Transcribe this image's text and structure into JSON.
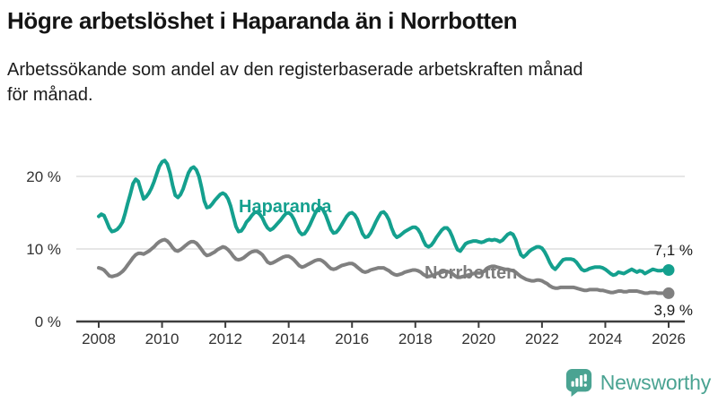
{
  "header": {
    "title": "Högre arbetslöshet i Haparanda än i Norrbotten",
    "subtitle": "Arbetssökande som andel av den registerbaserade arbetskraften månad för månad."
  },
  "chart_data": {
    "type": "line",
    "title": "Högre arbetslöshet i Haparanda än i Norrbotten",
    "xlabel": "",
    "ylabel": "Arbetssökande som andel av den registerbaserade arbetskraften",
    "x_unit": "year",
    "frequency": "monthly",
    "x_start": "2008-01",
    "x_end": "2026-01",
    "x_start_numeric": 2008,
    "xticks": [
      2008,
      2010,
      2012,
      2014,
      2016,
      2018,
      2020,
      2022,
      2024,
      2026
    ],
    "yticks": [
      {
        "value": 0,
        "label": "0 %"
      },
      {
        "value": 10,
        "label": "10 %"
      },
      {
        "value": 20,
        "label": "20 %"
      }
    ],
    "ylim": [
      0,
      23
    ],
    "grid": "horizontal",
    "legend_position": "inline-labels",
    "series": [
      {
        "name": "Haparanda",
        "color": "#14a08e",
        "end_label": "7,1 %",
        "end_value": 7.1,
        "values": [
          14.5,
          14.8,
          14.6,
          13.8,
          12.9,
          12.4,
          12.5,
          12.7,
          13.1,
          13.7,
          14.9,
          16.3,
          17.6,
          19.0,
          19.6,
          19.3,
          18.1,
          16.9,
          17.2,
          17.7,
          18.4,
          19.3,
          20.4,
          21.4,
          22.0,
          22.2,
          21.7,
          20.5,
          18.8,
          17.4,
          17.1,
          17.5,
          18.3,
          19.4,
          20.5,
          21.1,
          21.3,
          20.9,
          20.0,
          18.4,
          16.6,
          15.7,
          15.8,
          16.2,
          16.7,
          17.1,
          17.5,
          17.7,
          17.5,
          16.9,
          15.9,
          14.5,
          13.1,
          12.4,
          12.5,
          13.0,
          13.7,
          14.1,
          14.6,
          15.0,
          15.1,
          14.8,
          14.3,
          13.5,
          12.9,
          12.6,
          12.8,
          13.2,
          13.6,
          14.0,
          14.5,
          14.9,
          15.0,
          14.7,
          14.1,
          13.2,
          12.4,
          12.0,
          12.1,
          12.6,
          13.3,
          14.1,
          14.9,
          15.5,
          15.7,
          15.4,
          14.7,
          13.7,
          12.7,
          12.2,
          12.3,
          12.7,
          13.3,
          13.9,
          14.5,
          14.9,
          15.0,
          14.7,
          14.1,
          13.1,
          12.1,
          11.6,
          11.7,
          12.2,
          12.9,
          13.7,
          14.4,
          15.0,
          15.1,
          14.7,
          14.0,
          12.9,
          12.0,
          11.6,
          11.8,
          12.1,
          12.4,
          12.6,
          12.8,
          13.0,
          13.0,
          12.7,
          12.1,
          11.2,
          10.5,
          10.3,
          10.5,
          11.0,
          11.6,
          12.1,
          12.6,
          12.9,
          12.9,
          12.5,
          11.7,
          10.7,
          9.9,
          9.7,
          10.2,
          10.7,
          10.9,
          11.0,
          11.1,
          11.1,
          11.0,
          10.9,
          11.0,
          11.2,
          11.3,
          11.2,
          11.3,
          11.2,
          11.0,
          11.2,
          11.6,
          12.0,
          12.2,
          12.0,
          11.3,
          10.2,
          9.2,
          8.9,
          9.2,
          9.6,
          9.9,
          10.1,
          10.3,
          10.3,
          10.1,
          9.6,
          8.9,
          8.1,
          7.5,
          7.2,
          7.6,
          8.1,
          8.5,
          8.6,
          8.6,
          8.6,
          8.5,
          8.2,
          7.7,
          7.2,
          7.0,
          7.1,
          7.3,
          7.4,
          7.5,
          7.5,
          7.5,
          7.4,
          7.2,
          6.9,
          6.6,
          6.4,
          6.5,
          6.8,
          6.7,
          6.6,
          6.8,
          7.0,
          7.2,
          7.0,
          6.8,
          7.0,
          6.9,
          6.6,
          6.8,
          7.0,
          7.2,
          7.1,
          7.0,
          7.0,
          7.1,
          7.1,
          7.1
        ]
      },
      {
        "name": "Norrbotten",
        "color": "#808080",
        "end_label": "3,9 %",
        "end_value": 3.9,
        "values": [
          7.4,
          7.3,
          7.1,
          6.7,
          6.3,
          6.2,
          6.3,
          6.4,
          6.6,
          6.9,
          7.3,
          7.8,
          8.3,
          8.8,
          9.2,
          9.4,
          9.4,
          9.3,
          9.5,
          9.7,
          10.0,
          10.3,
          10.7,
          11.0,
          11.2,
          11.3,
          11.1,
          10.7,
          10.2,
          9.8,
          9.7,
          9.9,
          10.2,
          10.5,
          10.8,
          11.0,
          11.0,
          10.8,
          10.4,
          9.9,
          9.4,
          9.1,
          9.2,
          9.4,
          9.6,
          9.9,
          10.1,
          10.3,
          10.2,
          9.9,
          9.5,
          9.0,
          8.6,
          8.5,
          8.6,
          8.8,
          9.1,
          9.4,
          9.6,
          9.7,
          9.7,
          9.5,
          9.2,
          8.7,
          8.2,
          8.0,
          8.1,
          8.3,
          8.5,
          8.7,
          8.9,
          9.0,
          9.0,
          8.8,
          8.5,
          8.1,
          7.7,
          7.5,
          7.6,
          7.8,
          8.0,
          8.2,
          8.4,
          8.5,
          8.5,
          8.3,
          8.0,
          7.6,
          7.3,
          7.2,
          7.3,
          7.5,
          7.7,
          7.8,
          7.9,
          8.0,
          8.0,
          7.8,
          7.5,
          7.2,
          6.9,
          6.8,
          6.9,
          7.1,
          7.2,
          7.3,
          7.4,
          7.4,
          7.4,
          7.2,
          7.0,
          6.7,
          6.5,
          6.4,
          6.5,
          6.6,
          6.8,
          6.9,
          7.0,
          7.1,
          7.1,
          7.0,
          6.8,
          6.5,
          6.3,
          6.2,
          6.3,
          6.4,
          6.6,
          6.7,
          6.8,
          6.9,
          6.9,
          6.8,
          6.6,
          6.3,
          6.1,
          6.1,
          6.2,
          6.3,
          6.4,
          6.5,
          6.6,
          6.7,
          6.7,
          6.7,
          6.9,
          7.3,
          7.5,
          7.6,
          7.6,
          7.5,
          7.4,
          7.3,
          7.2,
          7.2,
          7.1,
          7.0,
          6.8,
          6.5,
          6.2,
          6.0,
          5.8,
          5.7,
          5.6,
          5.6,
          5.7,
          5.7,
          5.6,
          5.4,
          5.2,
          4.9,
          4.7,
          4.6,
          4.6,
          4.7,
          4.7,
          4.7,
          4.7,
          4.7,
          4.7,
          4.6,
          4.5,
          4.4,
          4.3,
          4.3,
          4.4,
          4.4,
          4.4,
          4.4,
          4.3,
          4.3,
          4.2,
          4.1,
          4.0,
          4.0,
          4.1,
          4.2,
          4.2,
          4.1,
          4.1,
          4.2,
          4.2,
          4.2,
          4.2,
          4.1,
          4.0,
          3.9,
          3.9,
          4.0,
          4.0,
          4.0,
          3.9,
          3.9,
          3.9,
          3.9,
          3.9
        ]
      }
    ]
  },
  "footer": {
    "brand": "Newsworthy"
  },
  "colors": {
    "accent_teal": "#14a08e",
    "series_gray": "#808080",
    "logo_teal": "#4aa392",
    "gridline": "#dddddd",
    "axis": "#3d3d3d",
    "text": "#1a1a1a"
  }
}
